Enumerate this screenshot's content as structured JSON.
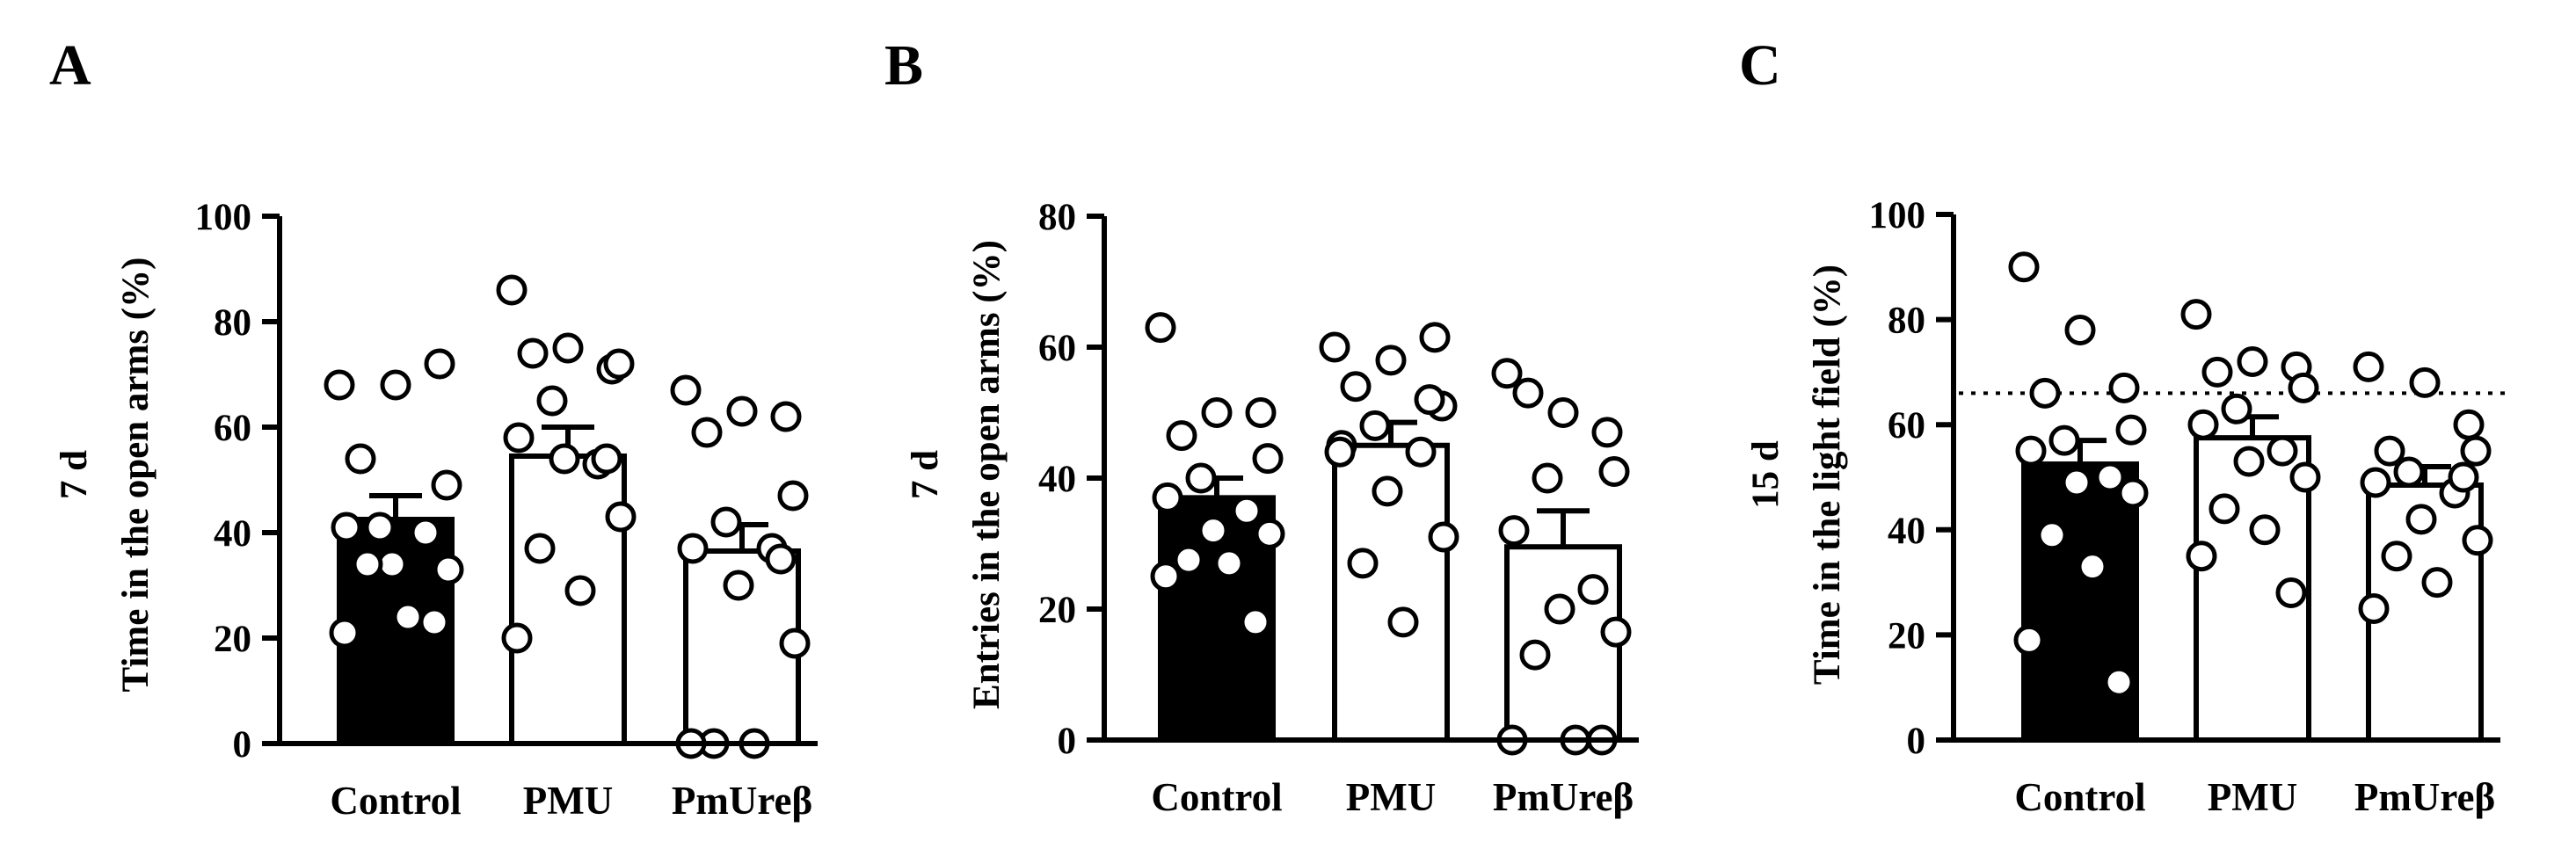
{
  "colors": {
    "control_fill": "#000000",
    "treated_fill": "#ffffff",
    "stroke": "#000000",
    "point_fill": "#ffffff"
  },
  "chart_data": [
    {
      "type": "bar",
      "panel": "A",
      "side_label": "7 d",
      "ylabel": "Time in the open arms (%)",
      "xlabel": "",
      "ylim": [
        0,
        100
      ],
      "yticks": [
        0,
        20,
        40,
        60,
        80,
        100
      ],
      "categories": [
        "Control",
        "PMU",
        "PmUreβ"
      ],
      "values": [
        42.5,
        54.5,
        36.5
      ],
      "sem": [
        4.5,
        5.5,
        5
      ],
      "points": [
        [
          68,
          68,
          72,
          54,
          49,
          41,
          41,
          40,
          34,
          33,
          34,
          24,
          21,
          23
        ],
        [
          86,
          75,
          71,
          74,
          72,
          65,
          58,
          53,
          54,
          43,
          37,
          29,
          20,
          54
        ],
        [
          67,
          63,
          62,
          59,
          47,
          42,
          37,
          37,
          30,
          19,
          0,
          0,
          0,
          35
        ]
      ],
      "reference_line": null
    },
    {
      "type": "bar",
      "panel": "B",
      "side_label": "7 d",
      "ylabel": "Entries in the open arms (%)",
      "xlabel": "",
      "ylim": [
        0,
        80
      ],
      "yticks": [
        0,
        20,
        40,
        60,
        80
      ],
      "categories": [
        "Control",
        "PMU",
        "PmUreβ"
      ],
      "values": [
        37,
        45,
        29.5
      ],
      "sem": [
        3,
        3.5,
        5.5
      ],
      "points": [
        [
          63,
          50,
          50,
          46.5,
          43,
          40,
          37,
          35,
          32,
          31.5,
          27.5,
          27,
          25,
          18
        ],
        [
          60,
          58,
          61.5,
          54,
          51,
          48,
          45,
          44,
          38,
          31,
          27,
          18,
          44,
          52
        ],
        [
          56,
          50,
          47,
          53,
          41,
          40,
          32,
          23,
          20,
          16.5,
          13,
          0,
          0,
          0
        ]
      ],
      "reference_line": null
    },
    {
      "type": "bar",
      "panel": "C",
      "side_label": "15 d",
      "ylabel": "Time in the light field (%)",
      "xlabel": "",
      "ylim": [
        0,
        100
      ],
      "yticks": [
        0,
        20,
        40,
        60,
        80,
        100
      ],
      "categories": [
        "Control",
        "PMU",
        "PmUreβ"
      ],
      "values": [
        52.5,
        57.5,
        48.5
      ],
      "sem": [
        4.5,
        4,
        3.5
      ],
      "points": [
        [
          90,
          78,
          67,
          66,
          59,
          57,
          55,
          50,
          49,
          47,
          39,
          33,
          19,
          11
        ],
        [
          81,
          72,
          71,
          70,
          67,
          63,
          60,
          55,
          53,
          50,
          44,
          40,
          35,
          28
        ],
        [
          71,
          68,
          60,
          55,
          55,
          51,
          49,
          47,
          42,
          38,
          35,
          30,
          25,
          50
        ]
      ],
      "reference_line": 66
    }
  ]
}
